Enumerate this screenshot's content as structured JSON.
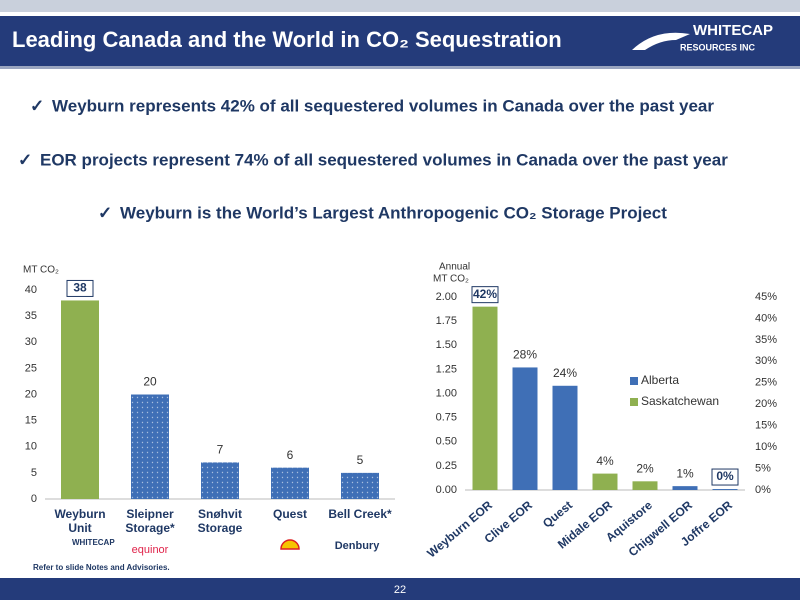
{
  "header": {
    "title": "Leading Canada and the World in CO₂ Sequestration",
    "logo": "WHITECAP",
    "logo_sub": "RESOURCES INC"
  },
  "bullets": [
    "Weyburn represents 42% of all sequestered volumes in Canada over the past year",
    "EOR projects represent 74% of all sequestered volumes in Canada over the past year",
    "Weyburn is the World’s Largest Anthropogenic CO₂ Storage Project"
  ],
  "logos": {
    "whitecap": "WHITECAP",
    "equinor": "equinor",
    "denbury": "Denbury"
  },
  "footnote": "Refer to slide Notes and Advisories.",
  "page_number": "22",
  "chart_data": [
    {
      "type": "bar",
      "ylabel": "MT CO₂",
      "categories": [
        "Weyburn Unit",
        "Sleipner Storage*",
        "Snøhvit Storage",
        "Quest",
        "Bell Creek*"
      ],
      "values": [
        38,
        20,
        7,
        6,
        5
      ],
      "colors": [
        "#8fb050",
        "#3f6fb6",
        "#3f6fb6",
        "#3f6fb6",
        "#3f6fb6"
      ],
      "ylim": [
        0,
        40
      ],
      "yticks": [
        0,
        5,
        10,
        15,
        20,
        25,
        30,
        35,
        40
      ]
    },
    {
      "type": "bar",
      "ylabel": [
        "Annual",
        "MT CO₂"
      ],
      "categories": [
        "Weyburn EOR",
        "Clive EOR",
        "Quest",
        "Midale EOR",
        "Aquistore",
        "Chigwell EOR",
        "Joffre EOR"
      ],
      "series": [
        {
          "name": "Alberta",
          "color": "#3f6fb6",
          "values": [
            null,
            1.27,
            1.08,
            null,
            null,
            0.04,
            0.01
          ]
        },
        {
          "name": "Saskatchewan",
          "color": "#8fb050",
          "values": [
            1.9,
            null,
            null,
            0.17,
            0.09,
            null,
            null
          ]
        }
      ],
      "share_labels": [
        "42%",
        "28%",
        "24%",
        "4%",
        "2%",
        "1%",
        "0%"
      ],
      "ylim": [
        0,
        2
      ],
      "yticks": [
        {
          "value": 0,
          "label": "0.00"
        },
        {
          "value": 0.25,
          "label": "0.25"
        },
        {
          "value": 0.5,
          "label": "0.50"
        },
        {
          "value": 0.75,
          "label": "0.75"
        },
        {
          "value": 1,
          "label": "1.00"
        },
        {
          "value": 1.25,
          "label": "1.25"
        },
        {
          "value": 1.5,
          "label": "1.50"
        },
        {
          "value": 1.75,
          "label": "1.75"
        },
        {
          "value": 2,
          "label": "2.00"
        }
      ],
      "y2lim": [
        0,
        45
      ],
      "y2ticks": [
        {
          "value": 0,
          "label": "0%"
        },
        {
          "value": 5,
          "label": "5%"
        },
        {
          "value": 10,
          "label": "10%"
        },
        {
          "value": 15,
          "label": "15%"
        },
        {
          "value": 20,
          "label": "20%"
        },
        {
          "value": 25,
          "label": "25%"
        },
        {
          "value": 30,
          "label": "30%"
        },
        {
          "value": 35,
          "label": "35%"
        },
        {
          "value": 40,
          "label": "40%"
        },
        {
          "value": 45,
          "label": "45%"
        }
      ]
    }
  ]
}
